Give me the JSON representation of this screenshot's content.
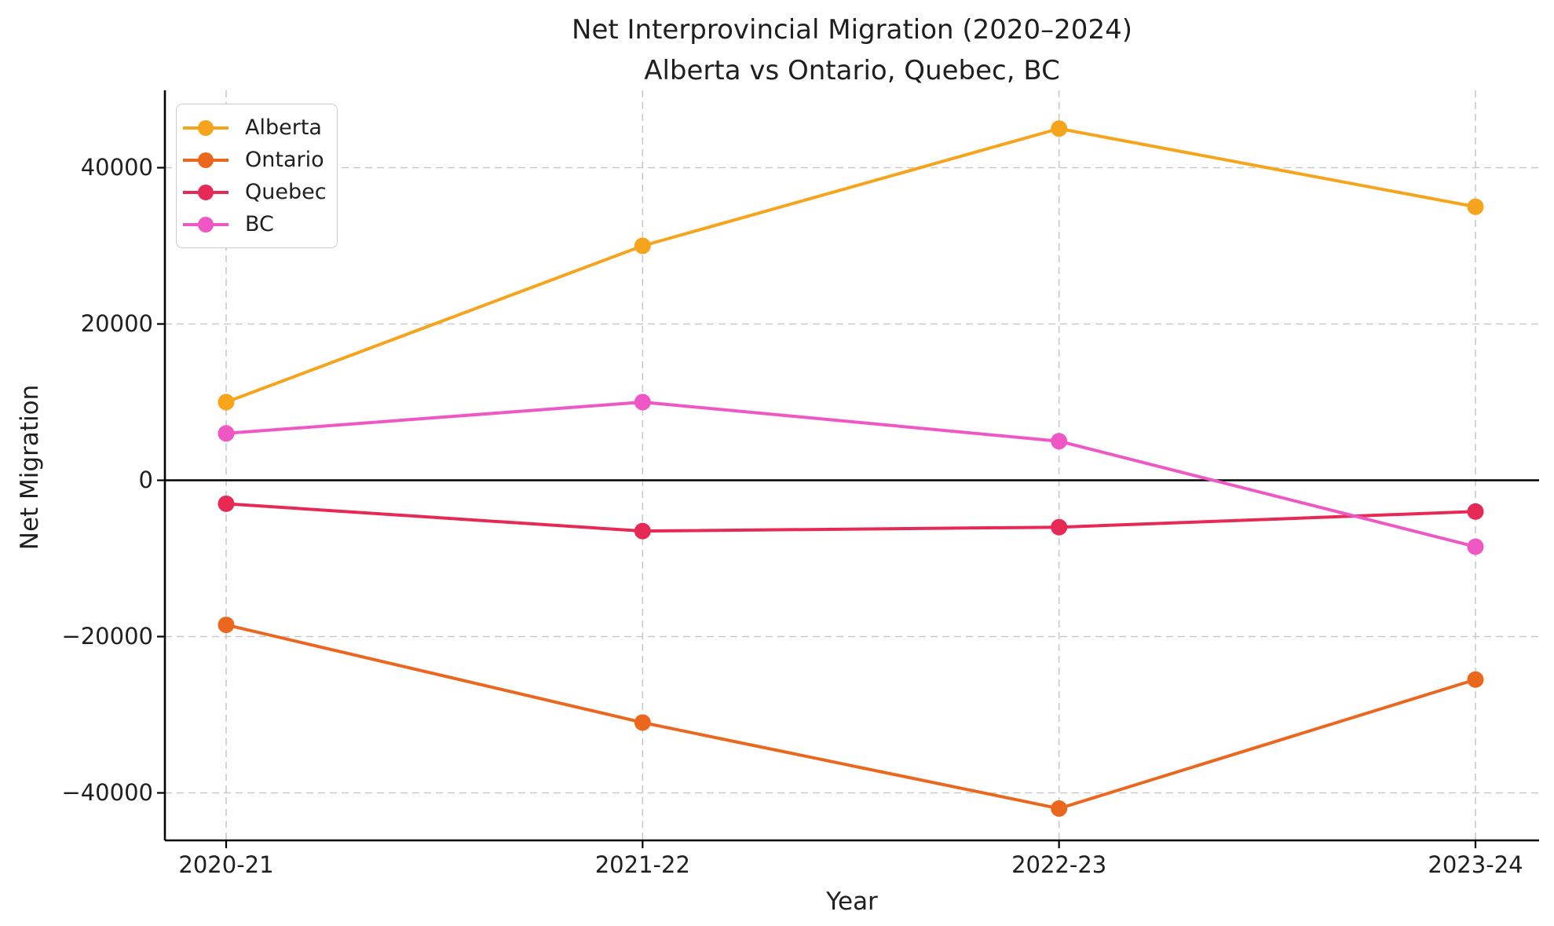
{
  "title": {
    "line1": "Net Interprovincial Migration (2020–2024)",
    "line2": "Alberta vs Ontario, Quebec, BC"
  },
  "axes": {
    "xlabel": "Year",
    "ylabel": "Net Migration"
  },
  "chart_data": {
    "type": "line",
    "title": "Net Interprovincial Migration (2020–2024) — Alberta vs Ontario, Quebec, BC",
    "xlabel": "Year",
    "ylabel": "Net Migration",
    "categories": [
      "2020-21",
      "2021-22",
      "2022-23",
      "2023-24"
    ],
    "series": [
      {
        "name": "Alberta",
        "color": "#F7A41D",
        "values": [
          10000,
          30000,
          45000,
          35000
        ]
      },
      {
        "name": "Ontario",
        "color": "#EC671E",
        "values": [
          -18500,
          -31000,
          -42000,
          -25500
        ]
      },
      {
        "name": "Quebec",
        "color": "#E62A55",
        "values": [
          -3000,
          -6500,
          -6000,
          -4000
        ]
      },
      {
        "name": "BC",
        "color": "#EF58C4",
        "values": [
          6000,
          10000,
          5000,
          -8500
        ]
      }
    ],
    "yticks": [
      40000,
      20000,
      0,
      -20000,
      -40000
    ],
    "ytick_labels": [
      "40000",
      "20000",
      "0",
      "−20000",
      "−40000"
    ],
    "ylim": [
      -46500,
      50200
    ],
    "grid": true,
    "grid_style": "dashed",
    "grid_color": "#c9c9c9",
    "zero_line": true,
    "zero_line_color": "#000000",
    "legend_position": "upper left",
    "text_color": "#1f1f1f"
  }
}
